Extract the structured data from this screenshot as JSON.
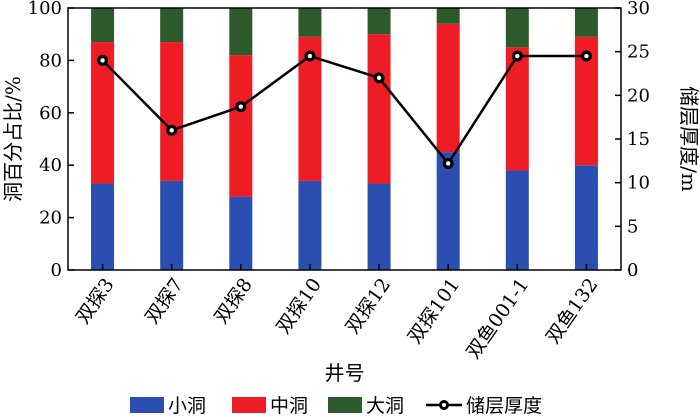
{
  "chart_data": {
    "type": "bar",
    "stacked": true,
    "categories": [
      "双探3",
      "双探7",
      "双探8",
      "双探10",
      "双探12",
      "双探101",
      "双鱼001-1",
      "双鱼132"
    ],
    "series": [
      {
        "name": "小洞",
        "color": "#2b4fb0",
        "values": [
          33,
          34,
          28,
          34,
          33,
          45,
          38,
          40
        ]
      },
      {
        "name": "中洞",
        "color": "#ee1c24",
        "values": [
          54,
          53,
          54,
          55,
          57,
          49,
          47,
          49
        ]
      },
      {
        "name": "大洞",
        "color": "#2d5a2d",
        "values": [
          13,
          13,
          18,
          11,
          10,
          6,
          15,
          11
        ]
      }
    ],
    "line_series": {
      "name": "储层厚度",
      "axis": "right",
      "color": "#000000",
      "values": [
        24,
        16,
        18.7,
        24.5,
        22,
        12.2,
        24.5,
        24.5
      ]
    },
    "xlabel": "井号",
    "ylabel": "洞百分占比/%",
    "y2label": "储层厚度/m",
    "ylim": [
      0,
      100
    ],
    "y2lim": [
      0,
      30
    ],
    "yticks": [
      "0",
      "20",
      "40",
      "60",
      "80",
      "100"
    ],
    "y2ticks": [
      "0",
      "5",
      "10",
      "15",
      "20",
      "25",
      "30"
    ],
    "grid": false,
    "legend_position": "bottom"
  }
}
